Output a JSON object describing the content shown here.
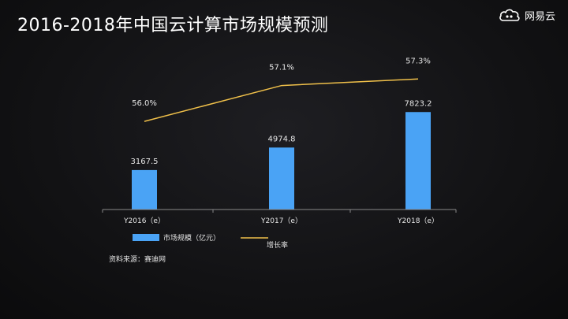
{
  "page": {
    "title": "2016-2018年中国云计算市场规模预测",
    "brand": "网易云",
    "source": "资料来源：赛迪网"
  },
  "chart_data": {
    "type": "bar",
    "title": "2016-2018年中国云计算市场规模预测",
    "categories": [
      "Y2016（e）",
      "Y2017（e）",
      "Y2018（e）"
    ],
    "series": [
      {
        "name": "市场规模（亿元）",
        "type": "bar",
        "values": [
          3167.5,
          4974.8,
          7823.2
        ],
        "labels": [
          "3167.5",
          "4974.8",
          "7823.2"
        ],
        "color": "#4aa3f5"
      },
      {
        "name": "增长率",
        "type": "line",
        "values": [
          56.0,
          57.1,
          57.3
        ],
        "labels": [
          "56.0%",
          "57.1%",
          "57.3%"
        ],
        "color": "#f0c04a"
      }
    ],
    "bar_ylim": [
      0,
      11000
    ],
    "line_ylim": [
      53.3,
      57.5
    ],
    "grid": false,
    "legend": "bottom",
    "colors": {
      "axis": "#8a8a8a",
      "text": "#e6e6e6"
    }
  }
}
